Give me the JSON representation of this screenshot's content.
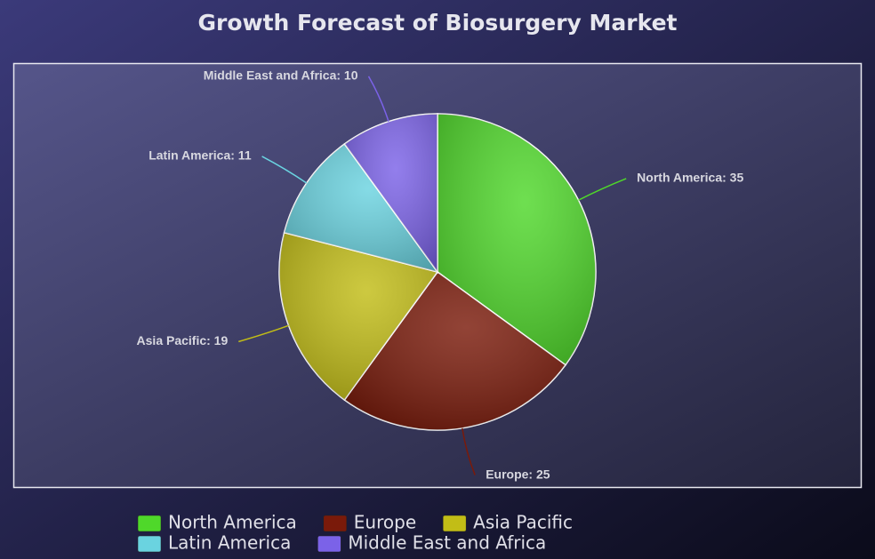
{
  "chart_data": {
    "type": "pie",
    "title": "Growth Forecast of Biosurgery Market",
    "categories": [
      "North America",
      "Europe",
      "Asia Pacific",
      "Latin America",
      "Middle East and Africa"
    ],
    "values": [
      35,
      25,
      19,
      11,
      10
    ],
    "value_labels": [
      "North America: 35",
      "Europe: 25",
      "Asia Pacific: 19",
      "Latin America: 11",
      "Middle East and Africa: 10"
    ],
    "colors": [
      "#4fd82a",
      "#7a1a0a",
      "#c2bd16",
      "#6ad3e0",
      "#7b62e8"
    ],
    "legend": "bottom"
  }
}
